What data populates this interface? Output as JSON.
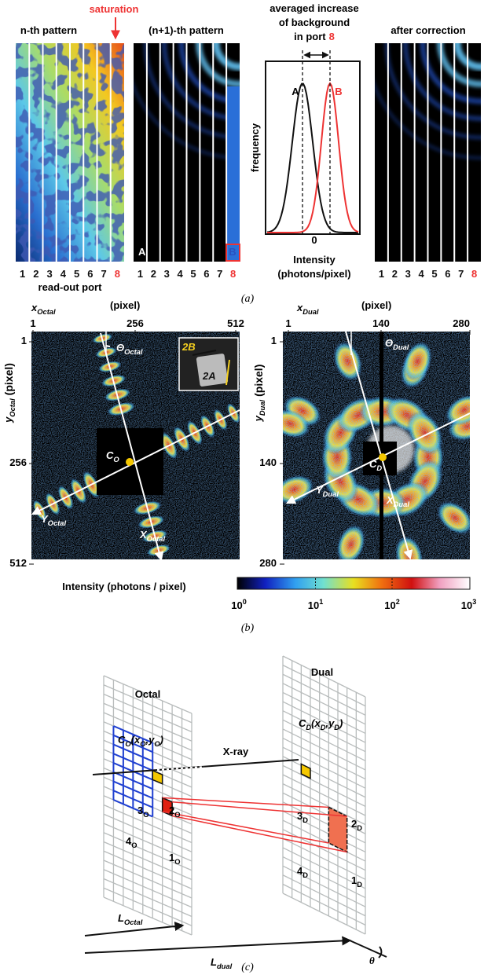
{
  "panel_a": {
    "saturation": "saturation",
    "n_title": "n-th pattern",
    "n1_title": "(n+1)-th pattern",
    "hist_title": [
      "averaged increase",
      "of background"
    ],
    "hist_in_port": "in port",
    "after_title": "after correction",
    "ports": [
      "1",
      "2",
      "3",
      "4",
      "5",
      "6",
      "7",
      "8"
    ],
    "read_out_port": "read-out port",
    "label_A": "A",
    "label_B": "B",
    "frequency": "frequency",
    "zero": "0",
    "intensity": "Intensity",
    "intensity_unit": "(photons/pixel)",
    "caption": "(a)"
  },
  "panel_b": {
    "left": {
      "name": "Octal",
      "x_axis": "x",
      "y_axis": "y",
      "unit": "(pixel)",
      "ticks": [
        1,
        256,
        512
      ],
      "theta": "Θ",
      "center": "C",
      "center_sub": "O",
      "Y": "Y",
      "X": "X",
      "inset": [
        "2B",
        "2A"
      ]
    },
    "right": {
      "name": "Dual",
      "x_axis": "x",
      "y_axis": "y",
      "unit": "(pixel)",
      "ticks": [
        1,
        140,
        280
      ],
      "theta": "Θ",
      "center": "C",
      "center_sub": "D",
      "Y": "Y",
      "X": "X"
    },
    "colorbar": {
      "label": "Intensity (photons / pixel)",
      "base": "10",
      "exponents": [
        0,
        1,
        2,
        3
      ]
    },
    "caption": "(b)"
  },
  "panel_c": {
    "octal": "Octal",
    "dual": "Dual",
    "c_o": [
      "C",
      "O",
      "(x",
      "O",
      ",y",
      "O",
      ")"
    ],
    "c_d": [
      "C",
      "D",
      "(x",
      "D",
      ",y",
      "D",
      ")"
    ],
    "xray": "X-ray",
    "corners_o": [
      [
        "3",
        "O"
      ],
      [
        "2",
        "O"
      ],
      [
        "4",
        "O"
      ],
      [
        "1",
        "O"
      ]
    ],
    "corners_d": [
      [
        "3",
        "D"
      ],
      [
        "2",
        "D"
      ],
      [
        "4",
        "D"
      ],
      [
        "1",
        "D"
      ]
    ],
    "l_octal": [
      "L",
      "Octal"
    ],
    "l_dual": [
      "L",
      "dual"
    ],
    "theta": "θ",
    "caption": "(c)"
  }
}
